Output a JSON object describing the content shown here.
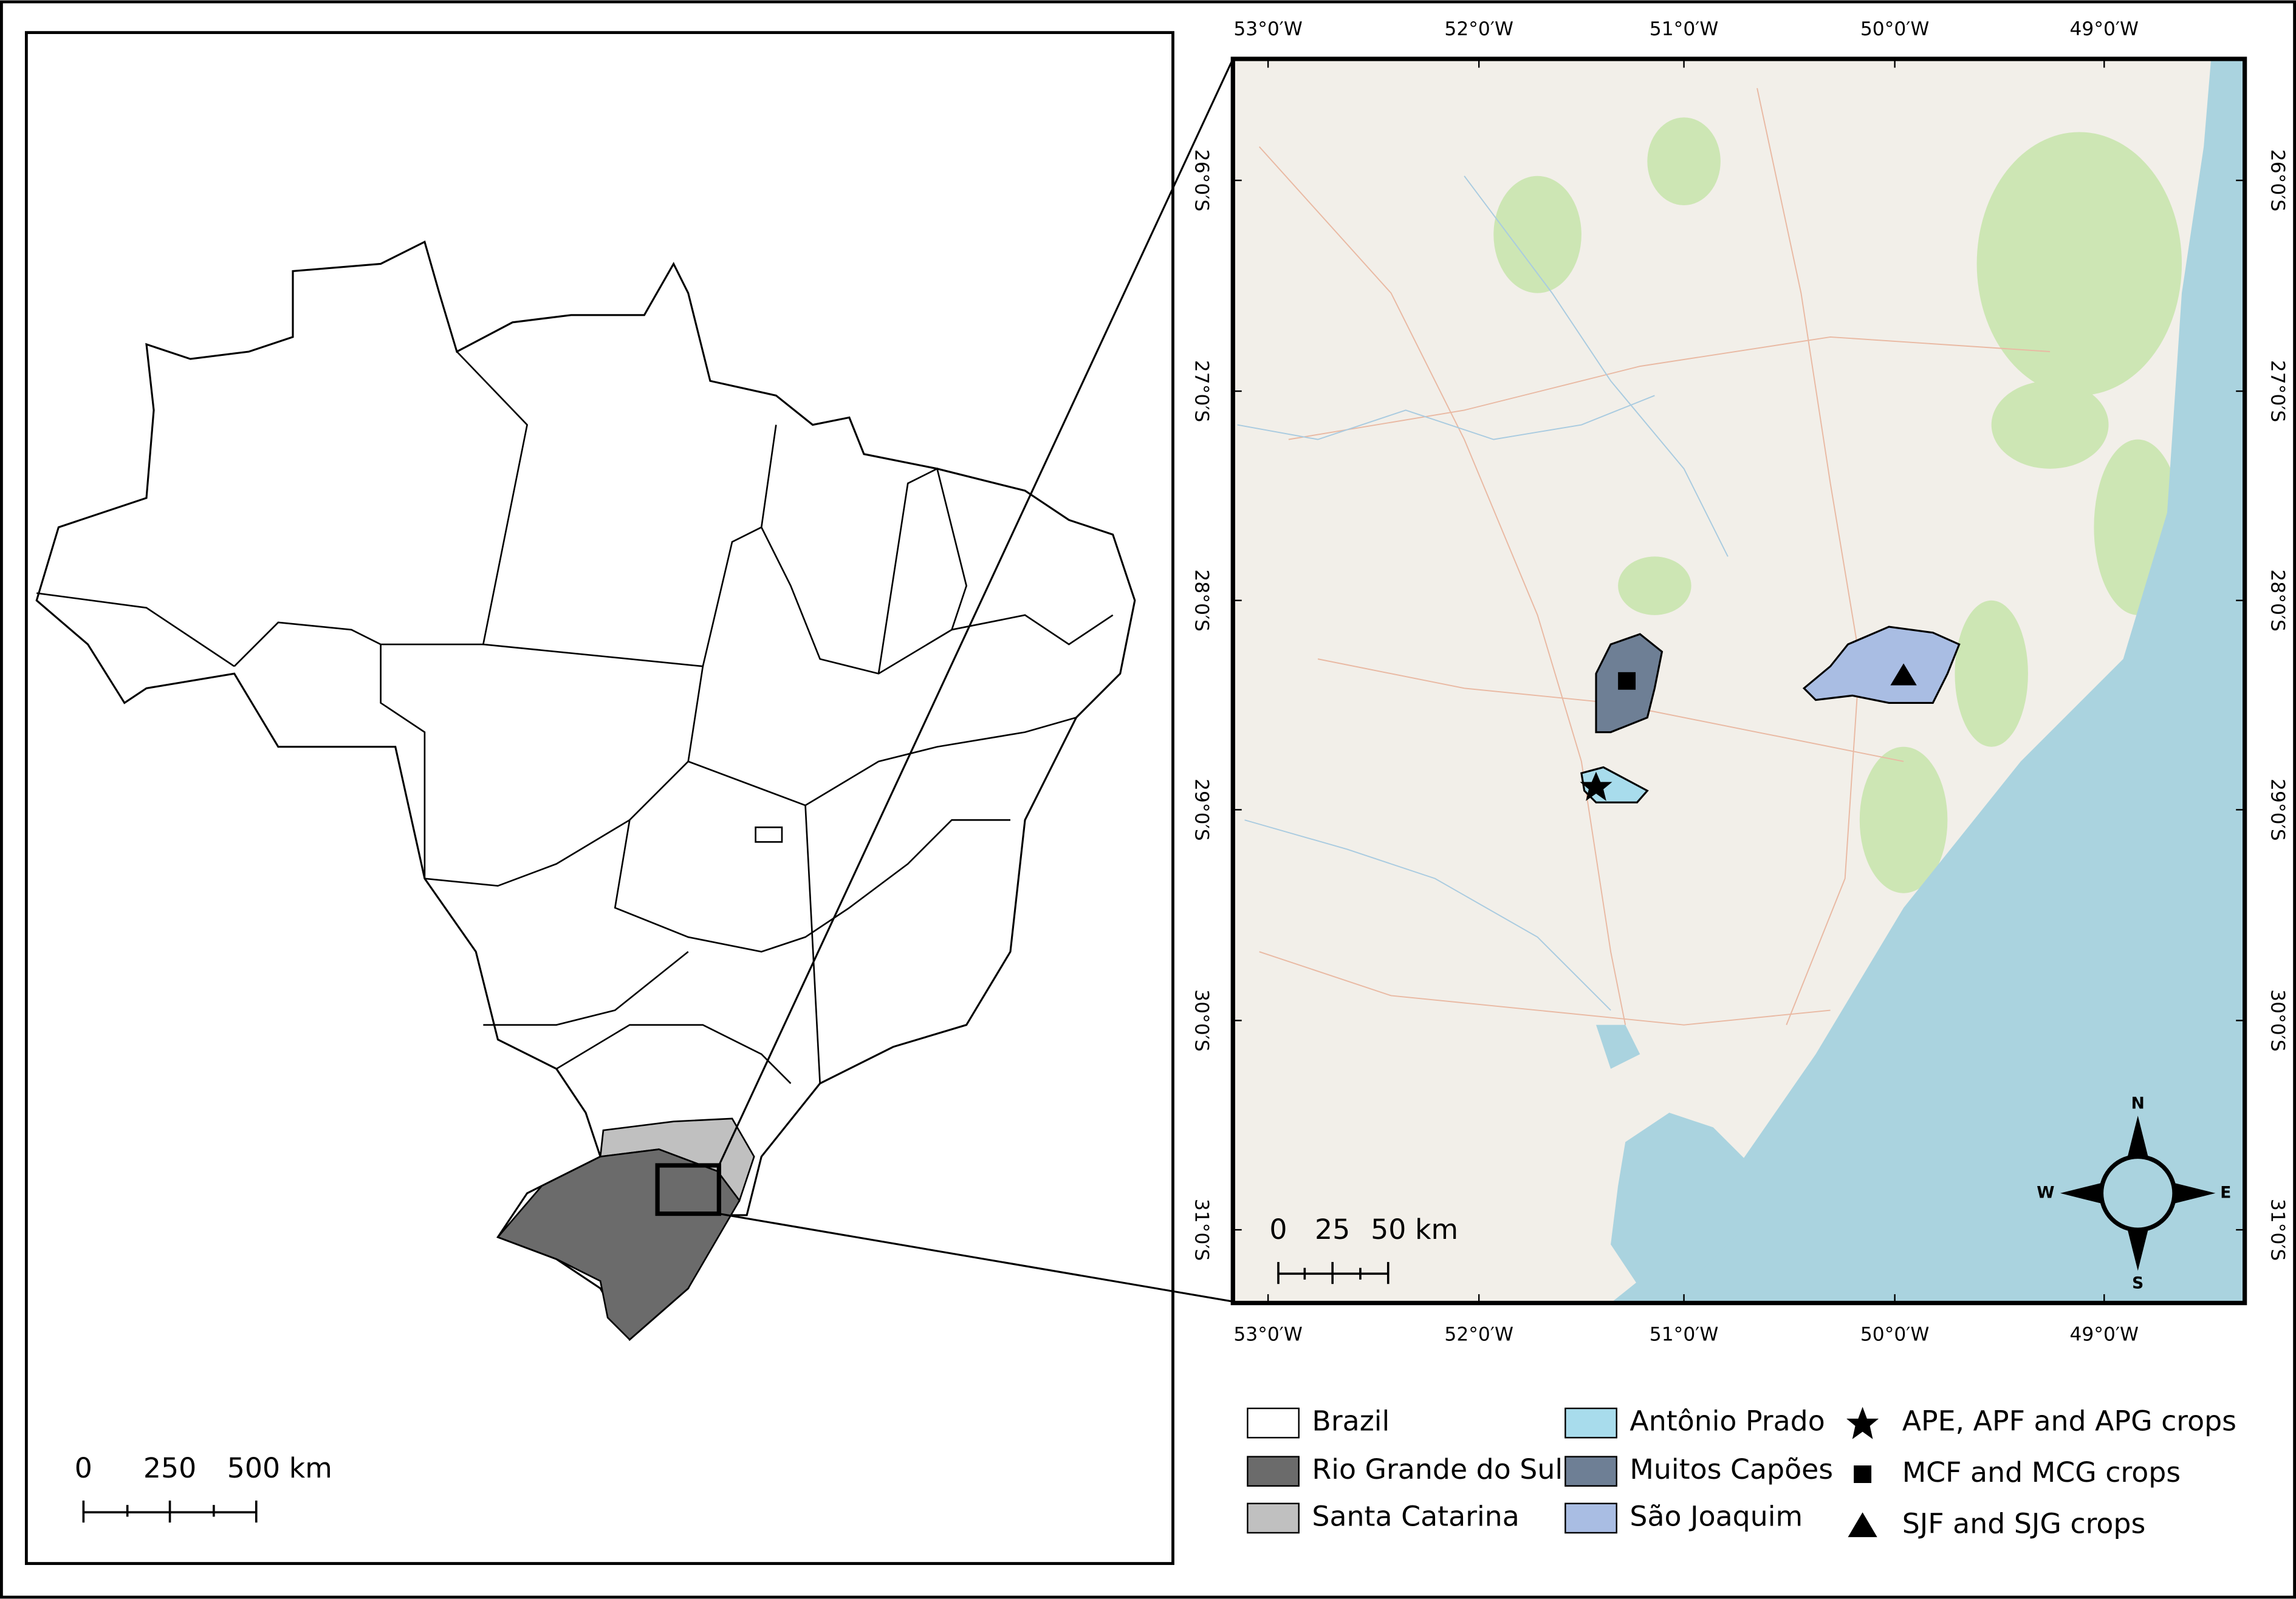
{
  "left_map": {
    "scale_bar": [
      "0",
      "250",
      "500 km"
    ]
  },
  "right_map": {
    "longitude_labels": [
      "53°0′W",
      "52°0′W",
      "51°0′W",
      "50°0′W",
      "49°0′W"
    ],
    "latitude_labels": [
      "26°0′S",
      "27°0′S",
      "28°0′S",
      "29°0′S",
      "30°0′S",
      "31°0′S"
    ],
    "scale_bar": [
      "0",
      "25",
      "50 km"
    ],
    "compass": {
      "north": "N",
      "south": "S",
      "east": "E",
      "west": "W"
    }
  },
  "legend": {
    "items": [
      {
        "label": "Brazil",
        "color": "#ffffff"
      },
      {
        "label": "Rio Grande do Sul",
        "color": "#6b6b6b"
      },
      {
        "label": "Santa Catarina",
        "color": "#c0c0c0"
      },
      {
        "label": "Antônio Prado",
        "color": "#a8dcec"
      },
      {
        "label": "Muitos Capões",
        "color": "#6e7f95"
      },
      {
        "label": "São Joaquim",
        "color": "#a9bde3"
      },
      {
        "label": "APE, APF and APG crops",
        "symbol": "star"
      },
      {
        "label": "MCF and MCG crops",
        "symbol": "square"
      },
      {
        "label": "SJF and SJG crops",
        "symbol": "triangle"
      }
    ]
  }
}
